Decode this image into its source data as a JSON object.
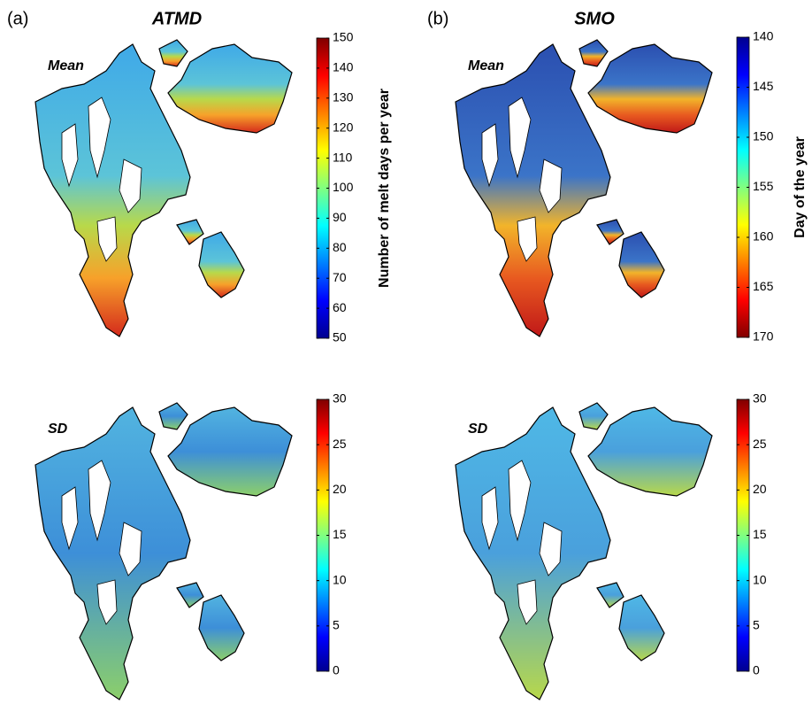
{
  "columns": [
    {
      "label": "(a)",
      "title": "ATMD"
    },
    {
      "label": "(b)",
      "title": "SMO"
    }
  ],
  "colormap": "jet",
  "panels": [
    {
      "title": "Mean",
      "range": [
        50,
        150
      ],
      "ticks": [
        50,
        60,
        70,
        80,
        90,
        100,
        110,
        120,
        130,
        140,
        150
      ],
      "colorbar_label": "Number of melt days per year",
      "reversed": false
    },
    {
      "title": "SD",
      "range": [
        0,
        30
      ],
      "ticks": [
        0,
        5,
        10,
        15,
        20,
        25,
        30
      ],
      "reversed": false
    },
    {
      "title": "Mean",
      "range": [
        140,
        170
      ],
      "ticks": [
        140,
        145,
        150,
        155,
        160,
        165,
        170
      ],
      "colorbar_label": "Day of the year",
      "reversed": true
    },
    {
      "title": "SD",
      "range": [
        0,
        30
      ],
      "ticks": [
        0,
        5,
        10,
        15,
        20,
        25,
        30
      ],
      "reversed": false
    }
  ]
}
